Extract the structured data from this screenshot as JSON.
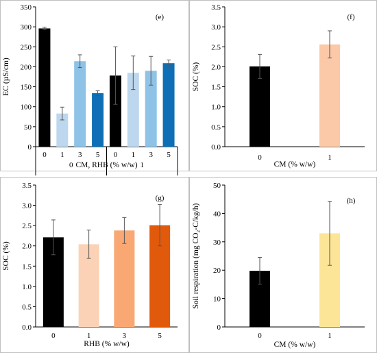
{
  "chart_data": [
    {
      "panel": "e",
      "type": "bar",
      "ylabel": "EC (µS/cm)",
      "xlabel": "CM, RHB (% w/w)",
      "ylim": [
        0,
        350
      ],
      "yticks": [
        0,
        50,
        100,
        150,
        200,
        250,
        300,
        350
      ],
      "categories": [
        "0",
        "1",
        "3",
        "5",
        "0",
        "1",
        "3",
        "5"
      ],
      "groups": [
        {
          "label": "0",
          "span": [
            0,
            3
          ]
        },
        {
          "label": "1",
          "span": [
            4,
            7
          ]
        }
      ],
      "values": [
        296,
        83,
        214,
        134,
        178,
        185,
        190,
        209
      ],
      "errors": [
        3,
        16,
        16,
        6,
        72,
        42,
        36,
        8
      ],
      "colors": [
        "#000000",
        "#bdd7ee",
        "#8ec3e7",
        "#0e6fb6",
        "#000000",
        "#bdd7ee",
        "#8ec3e7",
        "#0e6fb6"
      ]
    },
    {
      "panel": "f",
      "type": "bar",
      "ylabel": "SOC (%)",
      "xlabel": "CM (% w/w)",
      "ylim": [
        0,
        3.5
      ],
      "yticks": [
        "0.0",
        "0.5",
        "1.0",
        "1.5",
        "2.0",
        "2.5",
        "3.0",
        "3.5"
      ],
      "categories": [
        "0",
        "1"
      ],
      "values": [
        2.01,
        2.56
      ],
      "errors": [
        0.3,
        0.34
      ],
      "colors": [
        "#000000",
        "#fcc9a8"
      ]
    },
    {
      "panel": "g",
      "type": "bar",
      "ylabel": "SOC (%)",
      "xlabel": "RHB (% w/w)",
      "ylim": [
        0,
        3.5
      ],
      "yticks": [
        "0.0",
        "0.5",
        "1.0",
        "1.5",
        "2.0",
        "2.5",
        "3.0",
        "3.5"
      ],
      "categories": [
        "0",
        "1",
        "3",
        "5"
      ],
      "values": [
        2.21,
        2.04,
        2.38,
        2.51
      ],
      "errors": [
        0.43,
        0.35,
        0.32,
        0.51
      ],
      "colors": [
        "#000000",
        "#fcd2b6",
        "#f9a873",
        "#e15a0c"
      ]
    },
    {
      "panel": "h",
      "type": "bar",
      "ylabel": "Soil respiration (mg CO₂-C/kg/h)",
      "xlabel": "CM (% w/w)",
      "ylim": [
        0,
        50
      ],
      "yticks": [
        0,
        10,
        20,
        30,
        40,
        50
      ],
      "categories": [
        "0",
        "1"
      ],
      "values": [
        19.8,
        33.0
      ],
      "errors": [
        4.7,
        11.3
      ],
      "colors": [
        "#000000",
        "#fde597"
      ]
    }
  ]
}
